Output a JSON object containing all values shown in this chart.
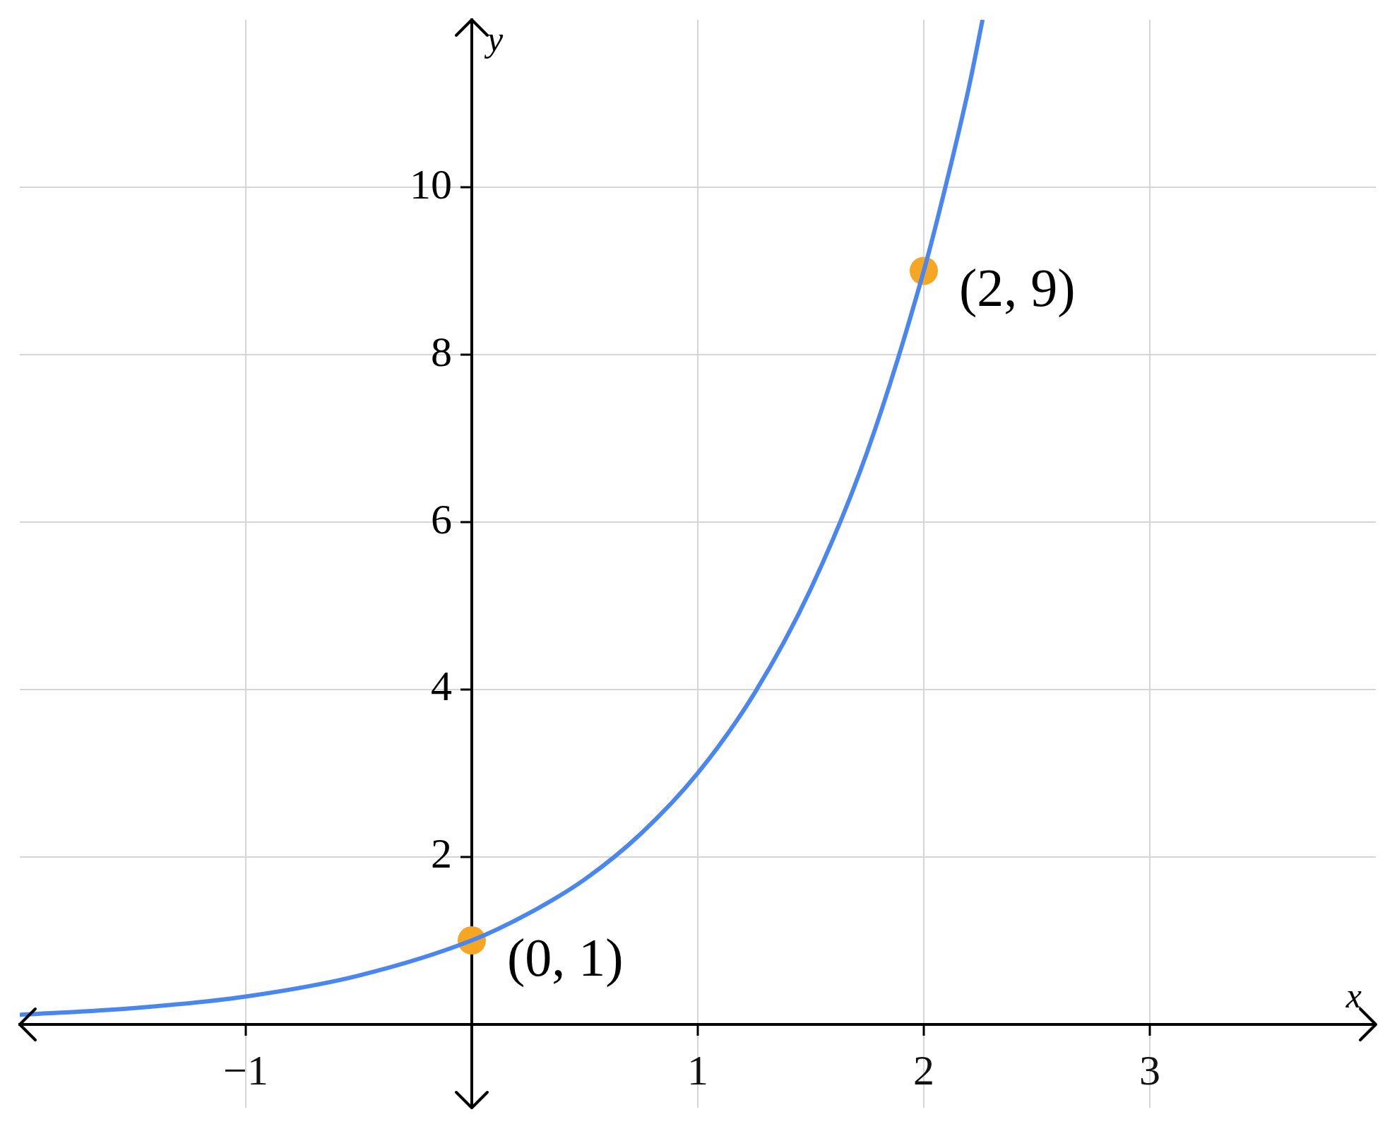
{
  "chart_data": {
    "type": "line",
    "xlabel": "x",
    "ylabel": "y",
    "xlim": [
      -2,
      4
    ],
    "ylim": [
      -1,
      12
    ],
    "xticks": [
      {
        "value": -1,
        "label": "−1"
      },
      {
        "value": 0,
        "label": null
      },
      1,
      2,
      3
    ],
    "yticks": [
      {
        "value": 0,
        "label": null
      },
      2,
      4,
      6,
      8,
      10
    ],
    "grid": true,
    "legend": false,
    "series": [
      {
        "color": "#4a86f0",
        "marker": "none",
        "x": [
          -2,
          -1.5,
          -1,
          -0.5,
          0,
          0.25,
          0.5,
          0.75,
          1,
          1.25,
          1.5,
          1.75,
          2,
          2.1,
          2.2,
          2.26
        ],
        "values": [
          0.11,
          0.19,
          0.33,
          0.58,
          1,
          1.32,
          1.73,
          2.28,
          3,
          3.95,
          5.2,
          6.84,
          9,
          10.05,
          11.2,
          12
        ]
      },
      {
        "type": "scatter",
        "color": "#f5a623",
        "marker": "circle",
        "x": [
          0,
          2
        ],
        "values": [
          1,
          9
        ]
      }
    ],
    "annotations": [
      {
        "text": "(0, 1)",
        "x": 0,
        "y": 1
      },
      {
        "text": "(2, 9)",
        "x": 2,
        "y": 9
      }
    ]
  }
}
